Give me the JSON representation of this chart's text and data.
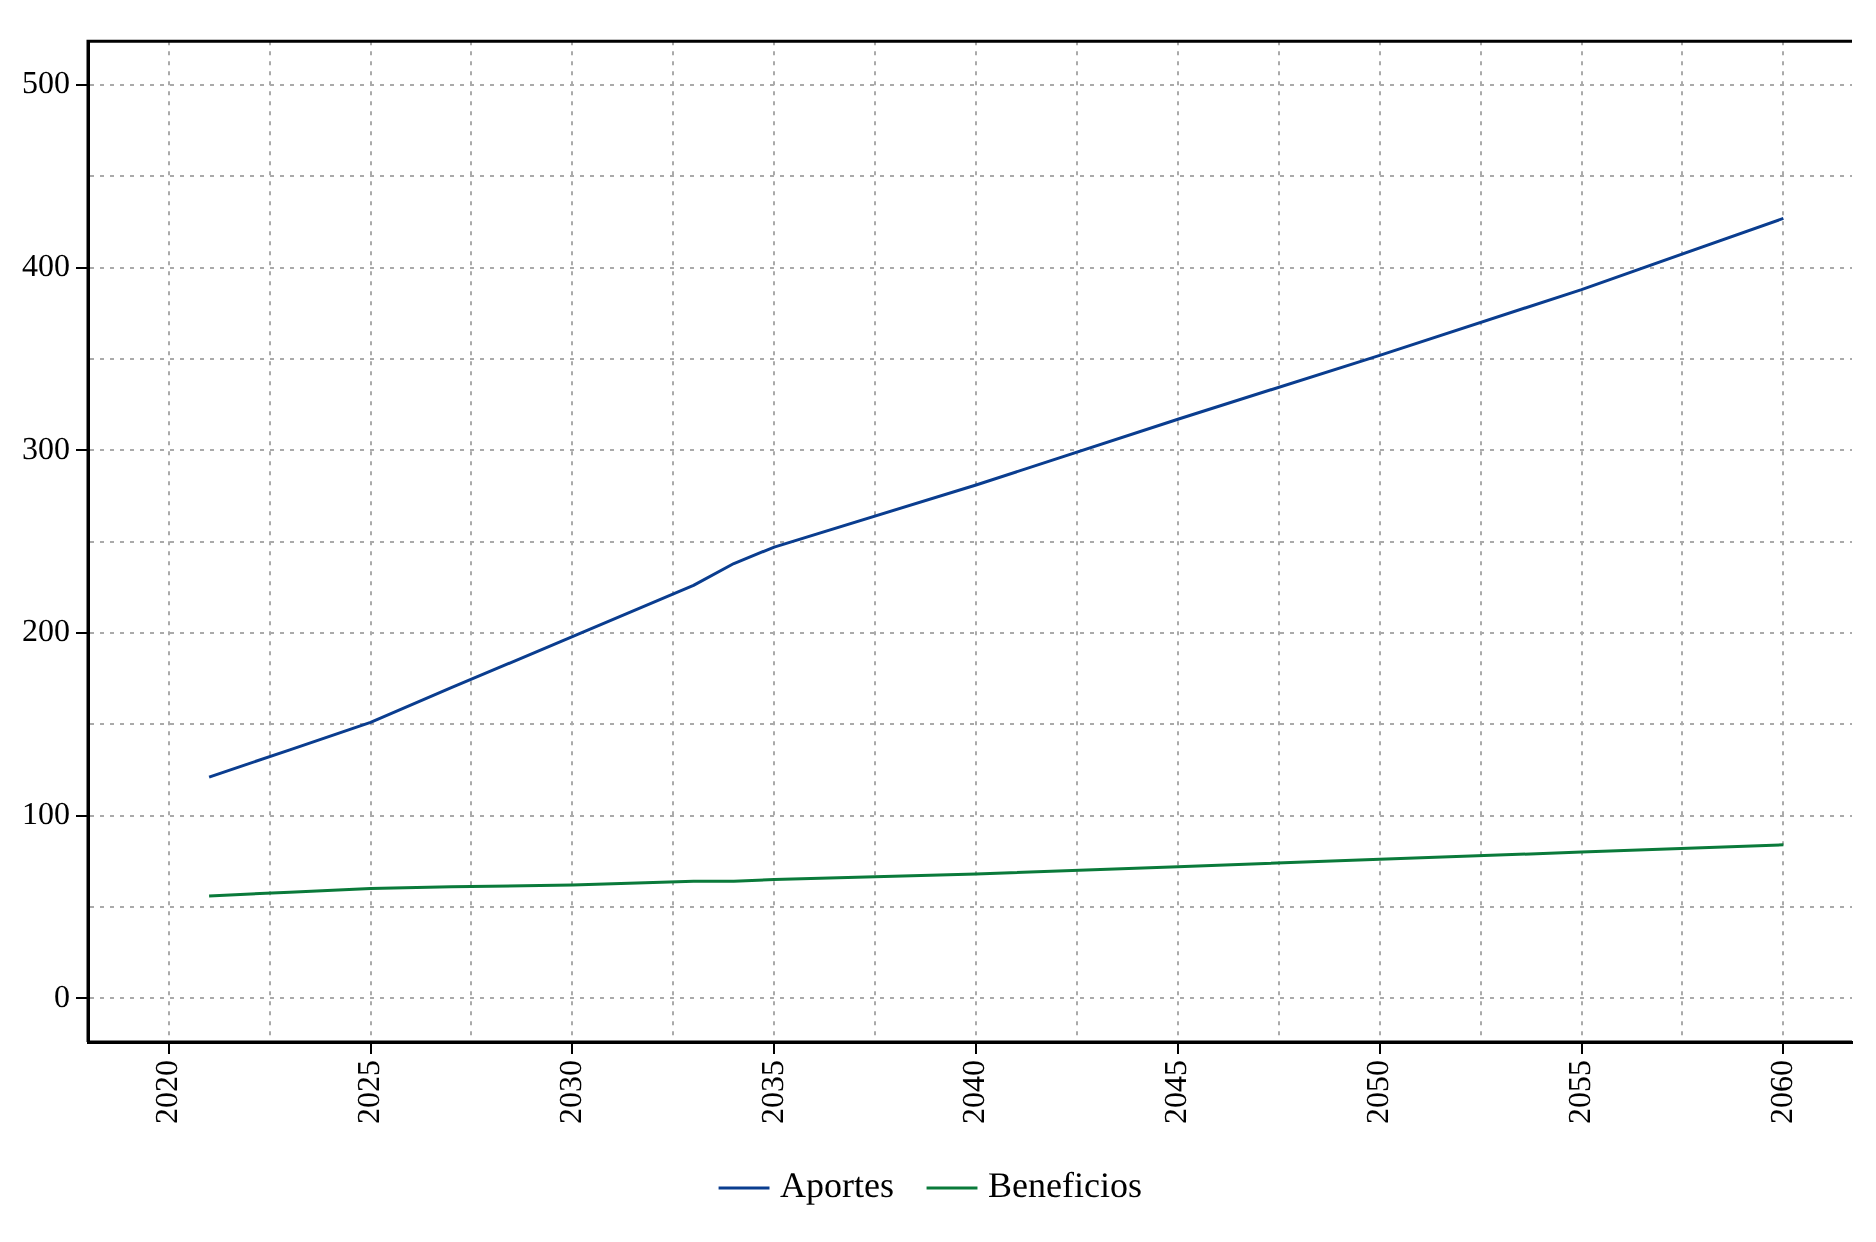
{
  "chart_data": {
    "type": "line",
    "x": [
      2021,
      2023,
      2025,
      2027,
      2030,
      2033,
      2034,
      2035,
      2040,
      2045,
      2050,
      2055,
      2060
    ],
    "series": [
      {
        "name": "Aportes",
        "color": "#0a3d8f",
        "values": [
          121,
          136,
          151,
          170,
          198,
          226,
          238,
          247,
          281,
          317,
          352,
          388,
          427
        ]
      },
      {
        "name": "Beneficios",
        "color": "#0a7a3a",
        "values": [
          56,
          58,
          60,
          61,
          62,
          64,
          64,
          65,
          68,
          72,
          76,
          80,
          84
        ]
      }
    ],
    "xlim": [
      2018,
      2061.7
    ],
    "xticks": [
      2020,
      {
        "value": 2022.5,
        "label": null
      },
      2025,
      {
        "value": 2027.5,
        "label": null
      },
      2030,
      {
        "value": 2032.5,
        "label": null
      },
      2035,
      {
        "value": 2037.5,
        "label": null
      },
      2040,
      {
        "value": 2042.5,
        "label": null
      },
      2045,
      {
        "value": 2047.5,
        "label": null
      },
      2050,
      {
        "value": 2052.5,
        "label": null
      },
      2055,
      {
        "value": 2057.5,
        "label": null
      },
      2060
    ],
    "ylim": [
      -24,
      524
    ],
    "yticks": [
      0,
      {
        "value": 50,
        "label": null
      },
      100,
      {
        "value": 150,
        "label": null
      },
      200,
      {
        "value": 250,
        "label": null
      },
      300,
      {
        "value": 350,
        "label": null
      },
      400,
      {
        "value": 450,
        "label": null
      },
      500
    ],
    "grid": true,
    "legend": "bottom",
    "marker": "none",
    "line_style": "solid"
  }
}
